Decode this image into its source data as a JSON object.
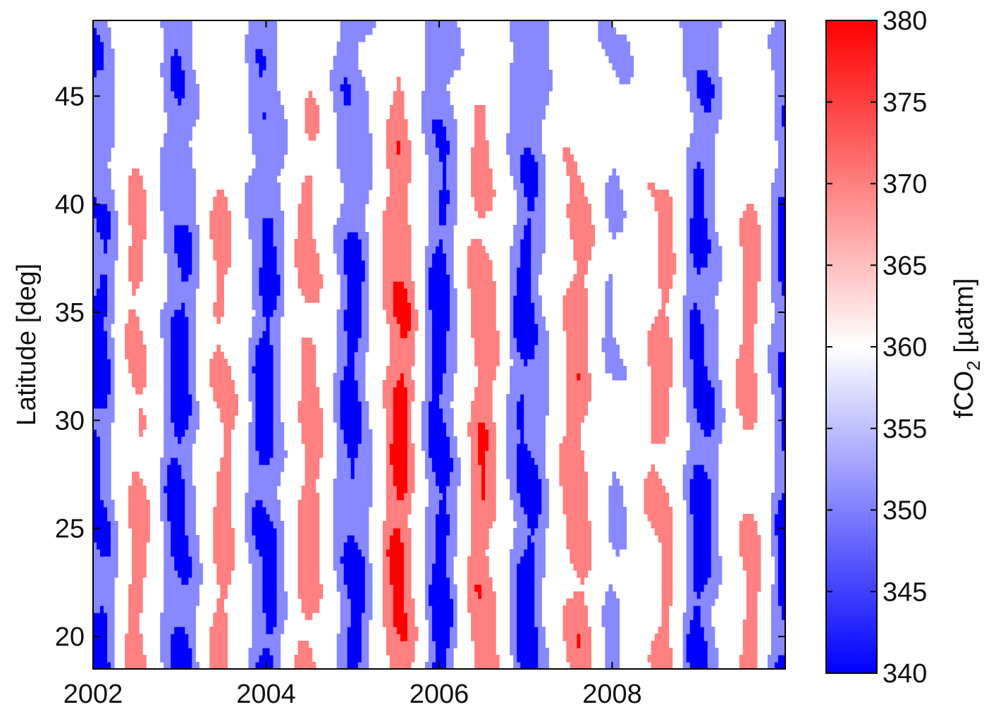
{
  "chart_data": {
    "type": "heatmap",
    "title": "",
    "xlabel": "",
    "ylabel": "Latitude [deg]",
    "xlim": [
      2002,
      2010
    ],
    "ylim": [
      18.5,
      48.5
    ],
    "x_ticks": [
      2002,
      2004,
      2006,
      2008
    ],
    "x_tick_labels": [
      "2002",
      "2004",
      "2006",
      "2008"
    ],
    "y_ticks": [
      20,
      25,
      30,
      35,
      40,
      45
    ],
    "y_tick_labels": [
      "20",
      "25",
      "30",
      "35",
      "40",
      "45"
    ],
    "colorbar": {
      "label_main": "fCO",
      "label_sub": "2",
      "label_unit": " [µatm]",
      "range": [
        340,
        380
      ],
      "ticks": [
        340,
        345,
        350,
        355,
        360,
        365,
        370,
        375,
        380
      ],
      "tick_labels": [
        "340",
        "345",
        "350",
        "355",
        "360",
        "365",
        "370",
        "375",
        "380"
      ],
      "colors": [
        "#0000ff",
        "#ffffff",
        "#ff0000"
      ]
    },
    "contour_levels": [
      345,
      352,
      360,
      368,
      375
    ],
    "grid": false,
    "seasonal_peaks": [
      {
        "time": 2002.5,
        "fco2": 370
      },
      {
        "time": 2003.5,
        "fco2": 370
      },
      {
        "time": 2004.5,
        "fco2": 371
      },
      {
        "time": 2005.55,
        "fco2": 376
      },
      {
        "time": 2006.5,
        "fco2": 373
      },
      {
        "time": 2007.6,
        "fco2": 372
      },
      {
        "time": 2008.6,
        "fco2": 370
      },
      {
        "time": 2009.6,
        "fco2": 370
      }
    ],
    "seasonal_troughs": [
      {
        "time": 2002.1,
        "fco2": 344
      },
      {
        "time": 2003.0,
        "fco2": 343
      },
      {
        "time": 2004.0,
        "fco2": 343
      },
      {
        "time": 2005.0,
        "fco2": 343
      },
      {
        "time": 2006.0,
        "fco2": 342
      },
      {
        "time": 2007.0,
        "fco2": 343
      },
      {
        "time": 2008.0,
        "fco2": 352
      },
      {
        "time": 2009.0,
        "fco2": 343
      },
      {
        "time": 2010.0,
        "fco2": 344
      }
    ],
    "colors": {
      "low": "#0000ff",
      "mid_low": "#8888ff",
      "mid": "#ffffff",
      "mid_high": "#ff8080",
      "high": "#ff0000"
    }
  }
}
